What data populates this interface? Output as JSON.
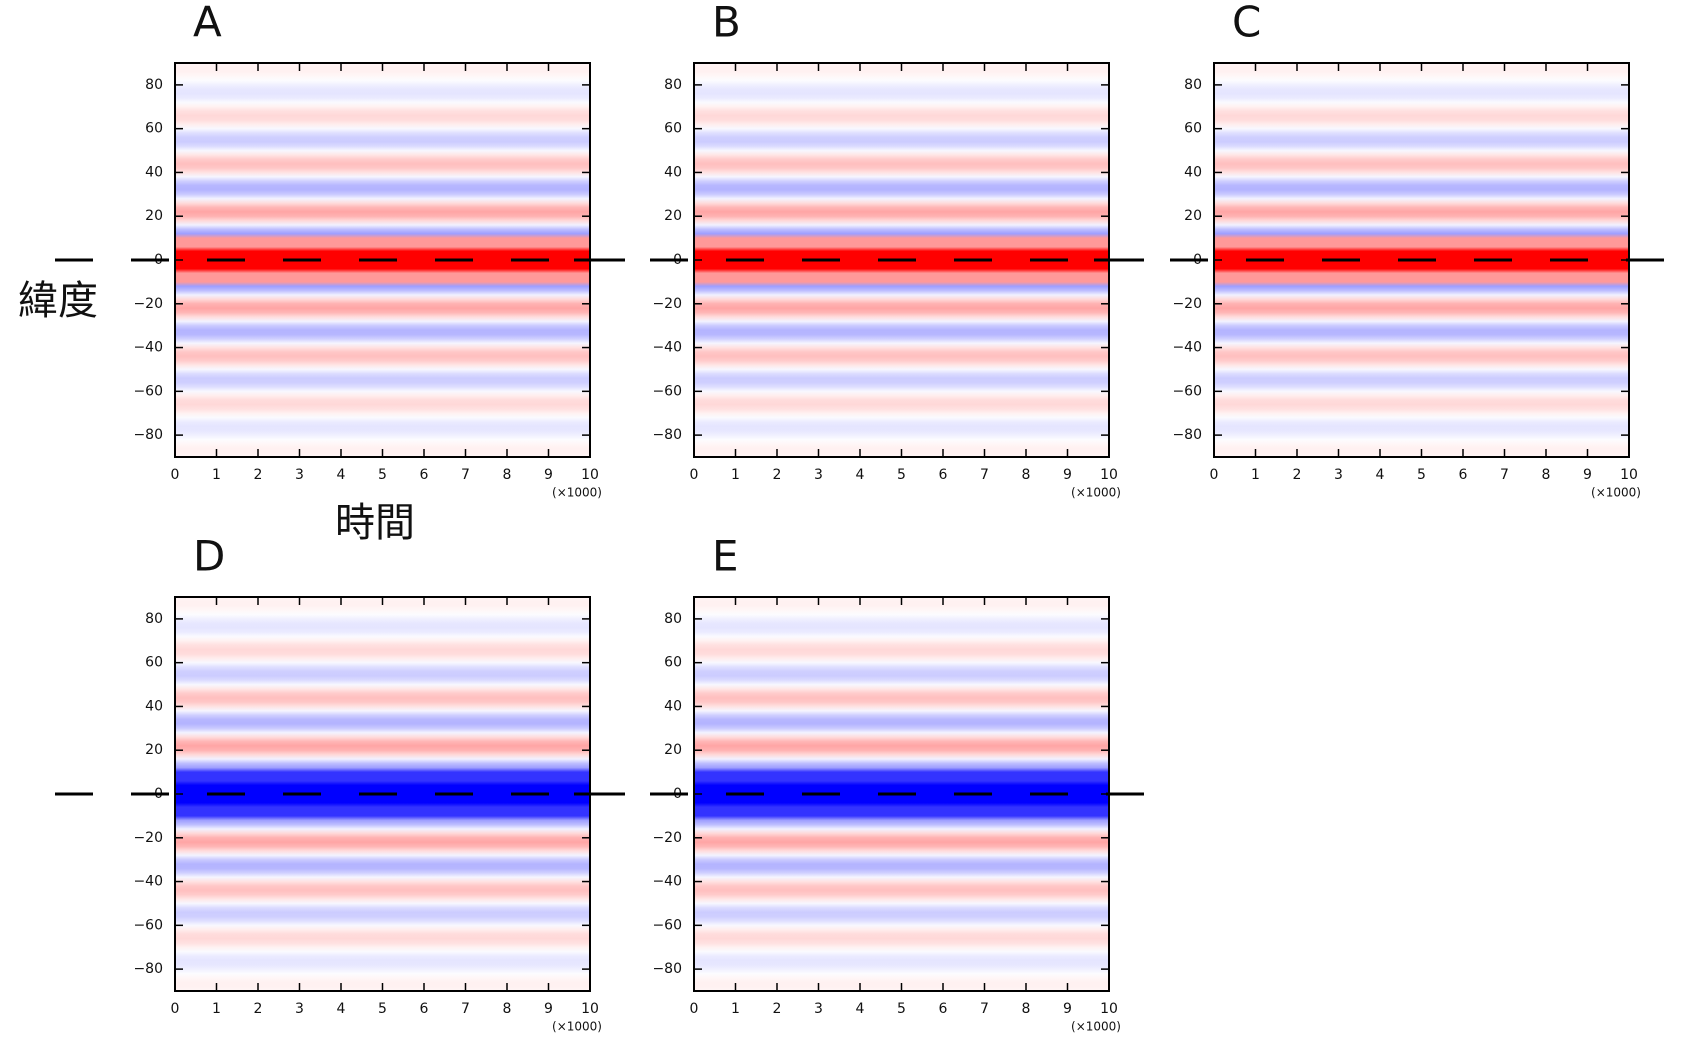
{
  "chart_data": [
    {
      "type": "heatmap",
      "title": "A",
      "xlabel": "時間",
      "ylabel": "緯度",
      "x_multiplier": "(×1000)",
      "xlim": [
        0,
        10
      ],
      "ylim": [
        -90,
        90
      ],
      "center": "red",
      "xticks": [
        0,
        1,
        2,
        3,
        4,
        5,
        6,
        7,
        8,
        9,
        10
      ],
      "yticks": [
        {
          "value": -80,
          "label": "−80"
        },
        {
          "value": -60,
          "label": "−60"
        },
        {
          "value": -40,
          "label": "−40"
        },
        {
          "value": -20,
          "label": "−20"
        },
        0,
        20,
        40,
        60,
        80
      ]
    },
    {
      "type": "heatmap",
      "title": "B",
      "x_multiplier": "(×1000)",
      "xlim": [
        0,
        10
      ],
      "ylim": [
        -90,
        90
      ],
      "center": "red",
      "xticks": [
        0,
        1,
        2,
        3,
        4,
        5,
        6,
        7,
        8,
        9,
        10
      ],
      "yticks": [
        {
          "value": -80,
          "label": "−80"
        },
        {
          "value": -60,
          "label": "−60"
        },
        {
          "value": -40,
          "label": "−40"
        },
        {
          "value": -20,
          "label": "−20"
        },
        0,
        20,
        40,
        60,
        80
      ]
    },
    {
      "type": "heatmap",
      "title": "C",
      "x_multiplier": "(×1000)",
      "xlim": [
        0,
        10
      ],
      "ylim": [
        -90,
        90
      ],
      "center": "red",
      "xticks": [
        0,
        1,
        2,
        3,
        4,
        5,
        6,
        7,
        8,
        9,
        10
      ],
      "yticks": [
        {
          "value": -80,
          "label": "−80"
        },
        {
          "value": -60,
          "label": "−60"
        },
        {
          "value": -40,
          "label": "−40"
        },
        {
          "value": -20,
          "label": "−20"
        },
        0,
        20,
        40,
        60,
        80
      ]
    },
    {
      "type": "heatmap",
      "title": "D",
      "x_multiplier": "(×1000)",
      "xlim": [
        0,
        10
      ],
      "ylim": [
        -90,
        90
      ],
      "center": "blue",
      "xticks": [
        0,
        1,
        2,
        3,
        4,
        5,
        6,
        7,
        8,
        9,
        10
      ],
      "yticks": [
        {
          "value": -80,
          "label": "−80"
        },
        {
          "value": -60,
          "label": "−60"
        },
        {
          "value": -40,
          "label": "−40"
        },
        {
          "value": -20,
          "label": "−20"
        },
        0,
        20,
        40,
        60,
        80
      ]
    },
    {
      "type": "heatmap",
      "title": "E",
      "x_multiplier": "(×1000)",
      "xlim": [
        0,
        10
      ],
      "ylim": [
        -90,
        90
      ],
      "center": "blue",
      "xticks": [
        0,
        1,
        2,
        3,
        4,
        5,
        6,
        7,
        8,
        9,
        10
      ],
      "yticks": [
        {
          "value": -80,
          "label": "−80"
        },
        {
          "value": -60,
          "label": "−60"
        },
        {
          "value": -40,
          "label": "−40"
        },
        {
          "value": -20,
          "label": "−20"
        },
        0,
        20,
        40,
        60,
        80
      ]
    }
  ]
}
